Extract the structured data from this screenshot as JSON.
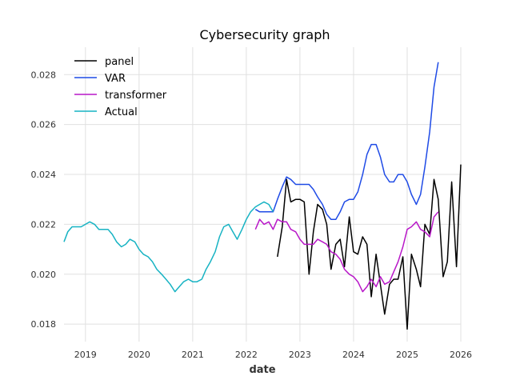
{
  "chart_data": {
    "type": "line",
    "title": "Cybersecurity graph",
    "xlabel": "date",
    "ylabel": "",
    "xlim": [
      2018.6,
      2026.0
    ],
    "ylim": [
      0.0173,
      0.0291
    ],
    "x_ticks": [
      2019,
      2020,
      2021,
      2022,
      2023,
      2024,
      2025,
      2026
    ],
    "y_ticks": [
      0.018,
      0.02,
      0.022,
      0.024,
      0.026,
      0.028
    ],
    "grid": true,
    "legend_position": "top-left",
    "series": [
      {
        "name": "panel",
        "color": "#000000",
        "x": [
          2022.58,
          2022.67,
          2022.75,
          2022.83,
          2022.92,
          2023.0,
          2023.08,
          2023.17,
          2023.25,
          2023.33,
          2023.42,
          2023.5,
          2023.58,
          2023.67,
          2023.75,
          2023.83,
          2023.92,
          2024.0,
          2024.08,
          2024.17,
          2024.25,
          2024.33,
          2024.42,
          2024.5,
          2024.58,
          2024.67,
          2024.75,
          2024.83,
          2024.92,
          2025.0,
          2025.08,
          2025.17,
          2025.25,
          2025.33,
          2025.42,
          2025.5,
          2025.58,
          2025.67,
          2025.75,
          2025.83,
          2025.92,
          2026.0
        ],
        "y": [
          0.0207,
          0.0219,
          0.0238,
          0.0229,
          0.023,
          0.023,
          0.0229,
          0.02,
          0.0217,
          0.0228,
          0.0226,
          0.022,
          0.0202,
          0.0212,
          0.0214,
          0.0203,
          0.0223,
          0.0209,
          0.0208,
          0.0215,
          0.0212,
          0.0191,
          0.0208,
          0.0196,
          0.0184,
          0.0196,
          0.0198,
          0.0198,
          0.0207,
          0.0178,
          0.0208,
          0.0202,
          0.0195,
          0.022,
          0.0216,
          0.0238,
          0.023,
          0.0199,
          0.0205,
          0.0237,
          0.0203,
          0.0244
        ]
      },
      {
        "name": "VAR",
        "color": "#1f4be6",
        "x": [
          2022.17,
          2022.25,
          2022.33,
          2022.42,
          2022.5,
          2022.58,
          2022.67,
          2022.75,
          2022.83,
          2022.92,
          2023.0,
          2023.08,
          2023.17,
          2023.25,
          2023.33,
          2023.42,
          2023.5,
          2023.58,
          2023.67,
          2023.75,
          2023.83,
          2023.92,
          2024.0,
          2024.08,
          2024.17,
          2024.25,
          2024.33,
          2024.42,
          2024.5,
          2024.58,
          2024.67,
          2024.75,
          2024.83,
          2024.92,
          2025.0,
          2025.08,
          2025.17,
          2025.25,
          2025.33,
          2025.42,
          2025.5,
          2025.58
        ],
        "y": [
          0.0226,
          0.0225,
          0.0225,
          0.0225,
          0.0225,
          0.023,
          0.0235,
          0.0239,
          0.0238,
          0.0236,
          0.0236,
          0.0236,
          0.0236,
          0.0234,
          0.0231,
          0.0228,
          0.0224,
          0.0222,
          0.0222,
          0.0225,
          0.0229,
          0.023,
          0.023,
          0.0233,
          0.024,
          0.0248,
          0.0252,
          0.0252,
          0.0247,
          0.024,
          0.0237,
          0.0237,
          0.024,
          0.024,
          0.0237,
          0.0232,
          0.0228,
          0.0232,
          0.0243,
          0.0257,
          0.0275,
          0.0285
        ]
      },
      {
        "name": "transformer",
        "color": "#b817c8",
        "x": [
          2022.17,
          2022.25,
          2022.33,
          2022.42,
          2022.5,
          2022.58,
          2022.67,
          2022.75,
          2022.83,
          2022.92,
          2023.0,
          2023.08,
          2023.17,
          2023.25,
          2023.33,
          2023.42,
          2023.5,
          2023.58,
          2023.67,
          2023.75,
          2023.83,
          2023.92,
          2024.0,
          2024.08,
          2024.17,
          2024.25,
          2024.33,
          2024.42,
          2024.5,
          2024.58,
          2024.67,
          2024.75,
          2024.83,
          2024.92,
          2025.0,
          2025.08,
          2025.17,
          2025.25,
          2025.33,
          2025.42,
          2025.5,
          2025.58
        ],
        "y": [
          0.0218,
          0.0222,
          0.022,
          0.0221,
          0.0218,
          0.0222,
          0.0221,
          0.0221,
          0.0218,
          0.0217,
          0.0214,
          0.0212,
          0.0212,
          0.0212,
          0.0214,
          0.0213,
          0.0212,
          0.0209,
          0.0208,
          0.0206,
          0.0202,
          0.02,
          0.0199,
          0.0197,
          0.0193,
          0.0195,
          0.0198,
          0.0195,
          0.0199,
          0.0196,
          0.0197,
          0.0201,
          0.0205,
          0.0211,
          0.0218,
          0.0219,
          0.0221,
          0.0218,
          0.0217,
          0.0215,
          0.0223,
          0.0225
        ]
      },
      {
        "name": "Actual",
        "color": "#17b3c3",
        "x": [
          2018.6,
          2018.67,
          2018.75,
          2018.83,
          2018.92,
          2019.0,
          2019.08,
          2019.17,
          2019.25,
          2019.33,
          2019.42,
          2019.5,
          2019.58,
          2019.67,
          2019.75,
          2019.83,
          2019.92,
          2020.0,
          2020.08,
          2020.17,
          2020.25,
          2020.33,
          2020.42,
          2020.5,
          2020.58,
          2020.67,
          2020.75,
          2020.83,
          2020.92,
          2021.0,
          2021.08,
          2021.17,
          2021.25,
          2021.33,
          2021.42,
          2021.5,
          2021.58,
          2021.67,
          2021.75,
          2021.83,
          2021.92,
          2022.0,
          2022.08,
          2022.17,
          2022.25,
          2022.33,
          2022.42,
          2022.5
        ],
        "y": [
          0.0213,
          0.0217,
          0.0219,
          0.0219,
          0.0219,
          0.022,
          0.0221,
          0.022,
          0.0218,
          0.0218,
          0.0218,
          0.0216,
          0.0213,
          0.0211,
          0.0212,
          0.0214,
          0.0213,
          0.021,
          0.0208,
          0.0207,
          0.0205,
          0.0202,
          0.02,
          0.0198,
          0.0196,
          0.0193,
          0.0195,
          0.0197,
          0.0198,
          0.0197,
          0.0197,
          0.0198,
          0.0202,
          0.0205,
          0.0209,
          0.0215,
          0.0219,
          0.022,
          0.0217,
          0.0214,
          0.0218,
          0.0222,
          0.0225,
          0.0227,
          0.0228,
          0.0229,
          0.0228,
          0.0225
        ]
      }
    ]
  }
}
